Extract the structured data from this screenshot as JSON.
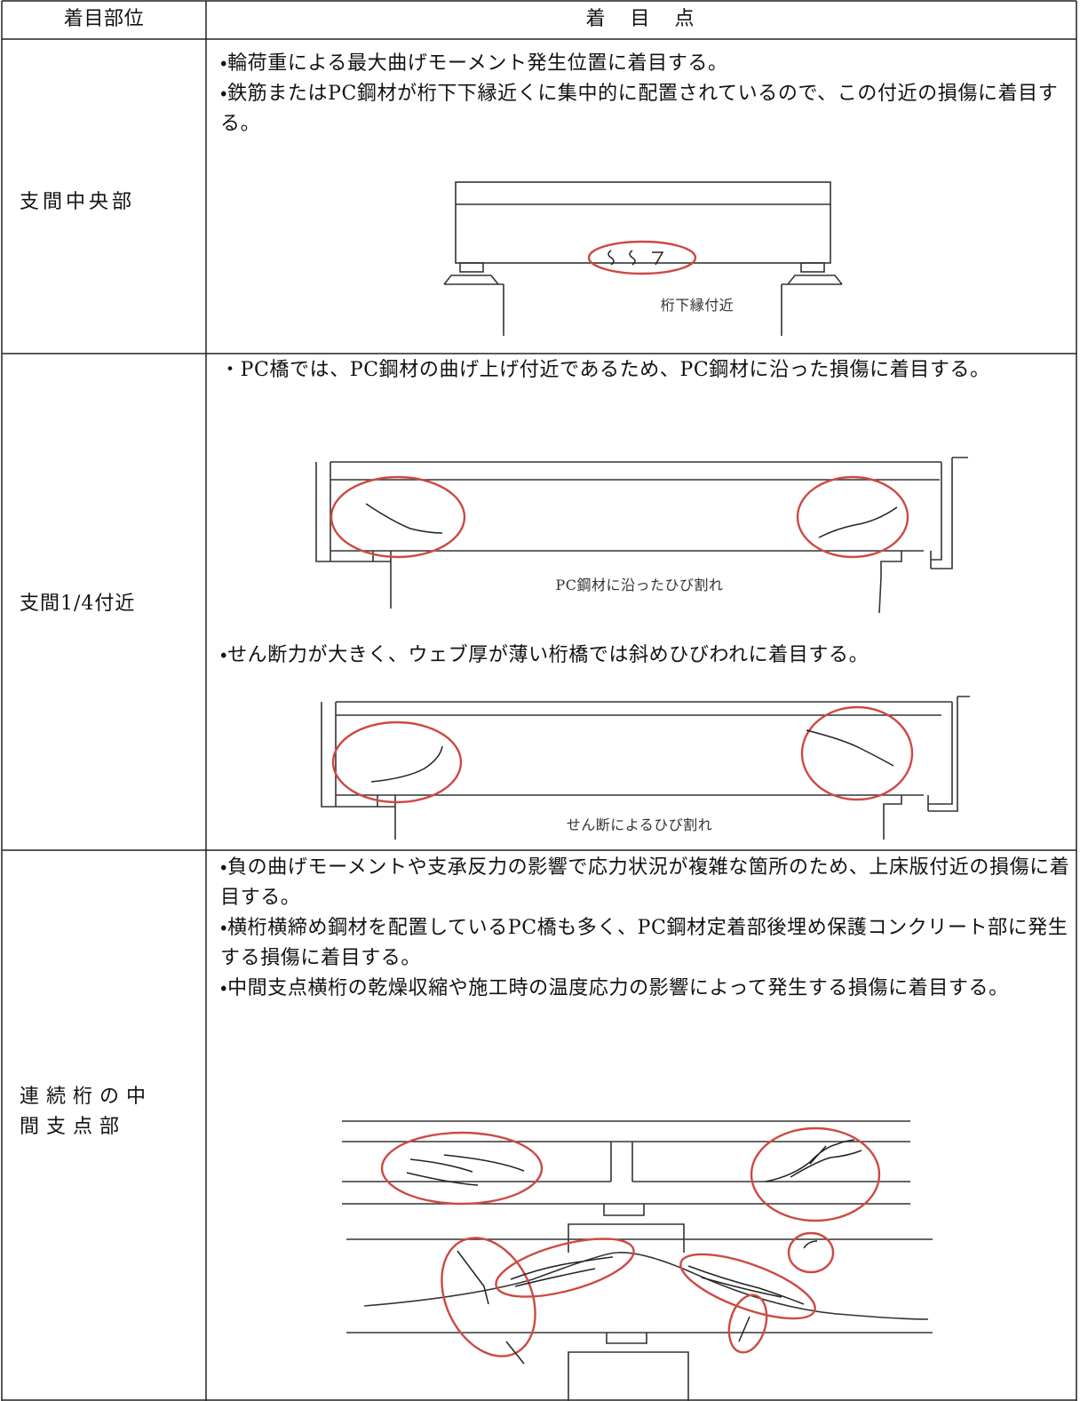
{
  "table": {
    "header": [
      "着目部位",
      "着　目　点"
    ],
    "rows": [
      {
        "part": "支間中央部",
        "bullets": [
          "・輪荷重による最大曲げモーメント発生位置に着目する。",
          "・鉄筋またはPC鋼材が桁下下縁近くに集中的に配置されているので、この付近の損傷に着目する。"
        ],
        "figure_labels": [
          "桁下縁付近"
        ]
      },
      {
        "part": "支間1/4付近",
        "bullets": [
          "・PC橋では、PC鋼材の曲げ上げ付近であるため、PC鋼材に沿った損傷に着目する。",
          "・せん断力が大きく、ウェブ厚が薄い桁橋では斜めひびわれに着目する。"
        ],
        "figure_labels": [
          "PC鋼材に沿ったひび割れ",
          "せん断によるひび割れ"
        ]
      },
      {
        "part": "連続桁の中間支点部",
        "bullets": [
          "・負の曲げモーメントや支承反力の影響で応力状況が複雑な箇所のため、上床版付近の損傷に着目する。",
          "・横桁横締め鋼材を配置しているPC橋も多く、PC鋼材定着部後埋め保護コンクリート部に発生する損傷に着目する。",
          "・中間支点横桁の乾燥収縮や施工時の温度応力の影響によって発生する損傷に着目する。"
        ]
      }
    ]
  }
}
